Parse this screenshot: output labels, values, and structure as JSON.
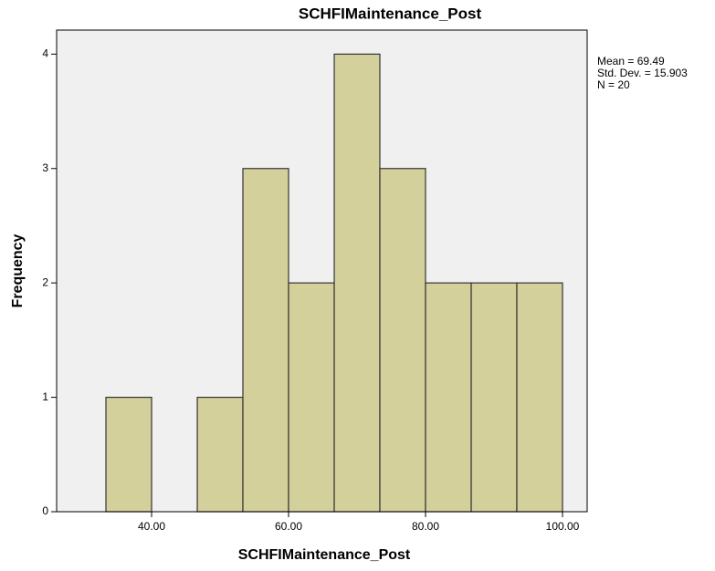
{
  "chart_data": {
    "type": "histogram",
    "title": "SCHFIMaintenance_Post",
    "xlabel": "SCHFIMaintenance_Post",
    "ylabel": "Frequency",
    "bins": [
      33.33,
      40,
      46.67,
      53.33,
      60,
      66.67,
      73.33,
      80,
      86.67,
      93.33,
      100
    ],
    "counts": [
      1,
      0,
      1,
      3,
      2,
      4,
      3,
      2,
      2,
      2
    ],
    "color": "#d4d09c",
    "xlim": [
      26.13,
      103.6
    ],
    "xticks": [
      {
        "value": 40,
        "label": "40.00"
      },
      {
        "value": 60,
        "label": "60.00"
      },
      {
        "value": 80,
        "label": "80.00"
      },
      {
        "value": 100,
        "label": "100.00"
      }
    ],
    "ylim": [
      0,
      4.21
    ],
    "yticks": [
      0,
      1,
      2,
      3,
      4
    ],
    "annotations": [
      "Mean = 69.49",
      "Std. Dev. = 15.903",
      "N = 20"
    ]
  }
}
